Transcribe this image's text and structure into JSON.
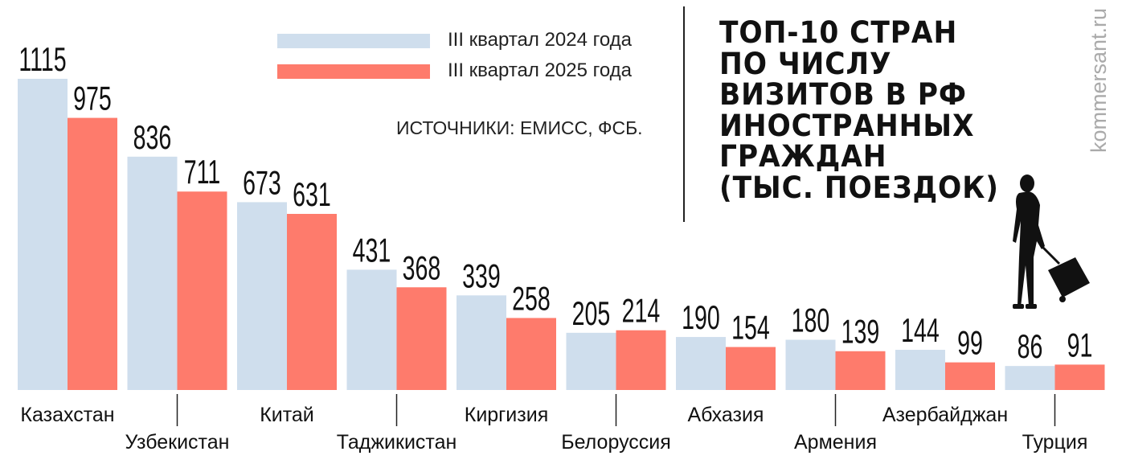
{
  "chart_data": {
    "type": "bar",
    "title": [
      "ТОП-10 СТРАН",
      "ПО ЧИСЛУ",
      "ВИЗИТОВ В РФ",
      "ИНОСТРАННЫХ",
      "ГРАЖДАН",
      "(ТЫС. ПОЕЗДОК)"
    ],
    "categories": [
      "Казахстан",
      "Узбекистан",
      "Китай",
      "Таджикистан",
      "Киргизия",
      "Белоруссия",
      "Абхазия",
      "Армения",
      "Азербайджан",
      "Турция"
    ],
    "series": [
      {
        "name": "III квартал 2024 года",
        "color": "#cfdeed",
        "values": [
          1115,
          836,
          673,
          431,
          339,
          205,
          190,
          180,
          144,
          86
        ]
      },
      {
        "name": "III квартал 2025 года",
        "color": "#fe7b6c",
        "values": [
          975,
          711,
          631,
          368,
          258,
          214,
          154,
          139,
          99,
          91
        ]
      }
    ],
    "ylim": [
      0,
      1115
    ],
    "xlabel": "",
    "ylabel": "",
    "grid": false,
    "legend_position": "top-center"
  },
  "source": "ИСТОЧНИКИ: ЕМИСС, ФСБ.",
  "brand": "kommersant.ru"
}
